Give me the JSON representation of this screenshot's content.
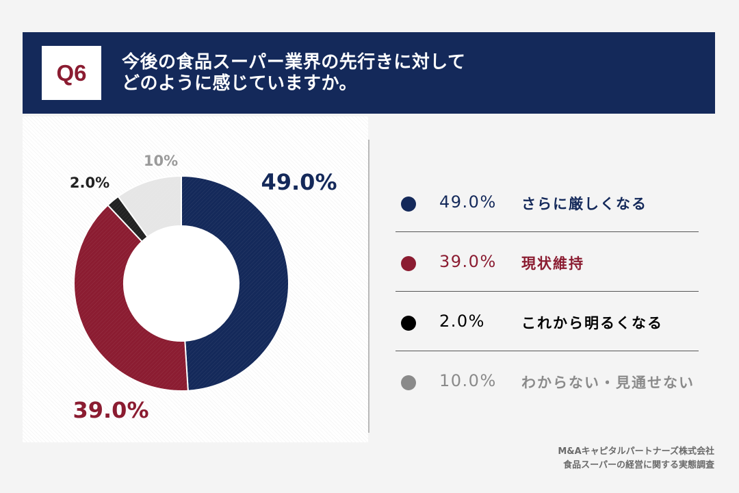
{
  "header": {
    "badge": "Q6",
    "title_line1": "今後の食品スーパー業界の先行きに対して",
    "title_line2": "どのように感じていますか。"
  },
  "colors": {
    "header_bg": "#14295a",
    "navy": "#14295a",
    "crimson": "#8b1c31",
    "black": "#222222",
    "grey": "#e6e6e6",
    "legend_grey": "#8a8a8a"
  },
  "chart_data": {
    "type": "pie",
    "variant": "donut",
    "title": "今後の食品スーパー業界の先行きに対してどのように感じていますか。",
    "categories": [
      "さらに厳しくなる",
      "現状維持",
      "これから明るくなる",
      "わからない・見通せない"
    ],
    "values": [
      49.0,
      39.0,
      2.0,
      10.0
    ],
    "unit": "%",
    "labels": [
      "49.0%",
      "39.0%",
      "2.0%",
      "10%"
    ],
    "colors": [
      "#14295a",
      "#8b1c31",
      "#222222",
      "#e6e6e6"
    ],
    "label_colors": [
      "#14295a",
      "#8b1c31",
      "#222222",
      "#9a9a9a"
    ],
    "start_angle_deg": 0,
    "direction": "clockwise"
  },
  "legend": {
    "items": [
      {
        "pct": "49.0%",
        "label": "さらに厳しくなる",
        "color": "#14295a"
      },
      {
        "pct": "39.0%",
        "label": "現状維持",
        "color": "#8b1c31"
      },
      {
        "pct": "2.0%",
        "label": "これから明るくなる",
        "color": "#000000"
      },
      {
        "pct": "10.0%",
        "label": "わからない・見通せない",
        "color": "#8a8a8a"
      }
    ]
  },
  "footer": {
    "line1": "M&Aキャピタルパートナーズ株式会社",
    "line2": "食品スーパーの経営に関する実態調査"
  }
}
